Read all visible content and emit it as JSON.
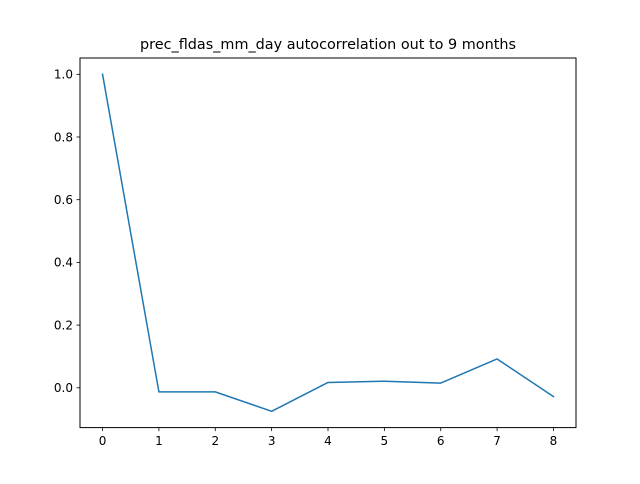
{
  "chart_data": {
    "type": "line",
    "title": "prec_fldas_mm_day autocorrelation out to 9 months",
    "xlabel": "",
    "ylabel": "",
    "x": [
      0,
      1,
      2,
      3,
      4,
      5,
      6,
      7,
      8
    ],
    "series": [
      {
        "values": [
          1.0,
          -0.013,
          -0.013,
          -0.075,
          0.017,
          0.021,
          0.015,
          0.092,
          -0.028
        ],
        "color": "#1f77b4"
      }
    ],
    "xlim": [
      -0.4,
      8.4
    ],
    "ylim": [
      -0.127,
      1.052
    ],
    "xticks": [
      0,
      1,
      2,
      3,
      4,
      5,
      6,
      7,
      8
    ],
    "yticks": [
      0.0,
      0.2,
      0.4,
      0.6,
      0.8,
      1.0
    ],
    "ytick_labels": [
      "0.0",
      "0.2",
      "0.4",
      "0.6",
      "0.8",
      "1.0"
    ],
    "grid": false,
    "legend": "none"
  }
}
